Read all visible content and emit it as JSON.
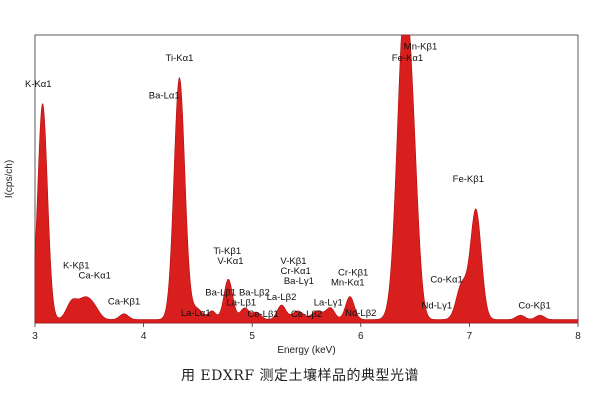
{
  "caption": "用 EDXRF 测定土壤样品的典型光谱",
  "chart_data": {
    "type": "area",
    "title": "",
    "xlabel": "Energy (keV)",
    "ylabel": "I(cps/ch)",
    "xlim": [
      3,
      8
    ],
    "ylim": [
      0,
      100
    ],
    "grid": false,
    "color": "#d91e1e",
    "xticks": [
      3,
      4,
      5,
      6,
      7,
      8
    ],
    "baseline": 1.2,
    "peaks": [
      {
        "center": 3.07,
        "height": 75,
        "width": 0.045
      },
      {
        "center": 3.34,
        "height": 6,
        "width": 0.05
      },
      {
        "center": 3.46,
        "height": 7,
        "width": 0.06
      },
      {
        "center": 3.55,
        "height": 3,
        "width": 0.05
      },
      {
        "center": 3.82,
        "height": 2,
        "width": 0.04
      },
      {
        "center": 4.33,
        "height": 84,
        "width": 0.05
      },
      {
        "center": 4.47,
        "height": 2.5,
        "width": 0.04
      },
      {
        "center": 4.52,
        "height": 2,
        "width": 0.04
      },
      {
        "center": 4.63,
        "height": 3,
        "width": 0.035
      },
      {
        "center": 4.78,
        "height": 14,
        "width": 0.04
      },
      {
        "center": 4.93,
        "height": 4,
        "width": 0.04
      },
      {
        "center": 5.04,
        "height": 2.5,
        "width": 0.04
      },
      {
        "center": 5.27,
        "height": 5,
        "width": 0.04
      },
      {
        "center": 5.42,
        "height": 3,
        "width": 0.05
      },
      {
        "center": 5.6,
        "height": 3,
        "width": 0.05
      },
      {
        "center": 5.72,
        "height": 4,
        "width": 0.04
      },
      {
        "center": 5.9,
        "height": 8,
        "width": 0.04
      },
      {
        "center": 6.4,
        "height": 105,
        "width": 0.065
      },
      {
        "center": 6.49,
        "height": 30,
        "width": 0.05
      },
      {
        "center": 6.93,
        "height": 12,
        "width": 0.05
      },
      {
        "center": 7.06,
        "height": 38,
        "width": 0.05
      },
      {
        "center": 7.47,
        "height": 1.5,
        "width": 0.04
      },
      {
        "center": 7.65,
        "height": 1.5,
        "width": 0.04
      }
    ],
    "annotations": [
      {
        "text": "K-Kα1",
        "x": 3.03,
        "y": 82
      },
      {
        "text": "Ti-Kα1",
        "x": 4.33,
        "y": 91
      },
      {
        "text": "Ba-Lα1",
        "x": 4.19,
        "y": 78
      },
      {
        "text": "Mn-Kβ1",
        "x": 6.55,
        "y": 95
      },
      {
        "text": "Fe-Kα1",
        "x": 6.43,
        "y": 91
      },
      {
        "text": "K-Kβ1",
        "x": 3.38,
        "y": 19
      },
      {
        "text": "Ca-Kα1",
        "x": 3.55,
        "y": 15.5
      },
      {
        "text": "Ca-Kβ1",
        "x": 3.82,
        "y": 6.5
      },
      {
        "text": "Ti-Kβ1",
        "x": 4.77,
        "y": 24
      },
      {
        "text": "V-Kα1",
        "x": 4.8,
        "y": 20.5
      },
      {
        "text": "Ba-Lβ1",
        "x": 4.71,
        "y": 9.5
      },
      {
        "text": "La-Lα1",
        "x": 4.48,
        "y": 2.5
      },
      {
        "text": "Ba-Lβ2",
        "x": 5.02,
        "y": 9.5
      },
      {
        "text": "La-Lβ1",
        "x": 4.9,
        "y": 6
      },
      {
        "text": "La-Lβ2",
        "x": 5.27,
        "y": 8
      },
      {
        "text": "Ce-Lβ1",
        "x": 5.1,
        "y": 2
      },
      {
        "text": "V-Kβ1",
        "x": 5.38,
        "y": 20.5
      },
      {
        "text": "Cr-Kα1",
        "x": 5.4,
        "y": 17
      },
      {
        "text": "Ba-Lγ1",
        "x": 5.43,
        "y": 13.5
      },
      {
        "text": "Mn-Kα1",
        "x": 5.88,
        "y": 13
      },
      {
        "text": "Cr-Kβ1",
        "x": 5.93,
        "y": 16.5
      },
      {
        "text": "Ce-Lβ2",
        "x": 5.5,
        "y": 2
      },
      {
        "text": "La-Lγ1",
        "x": 5.7,
        "y": 6
      },
      {
        "text": "Nd-Lβ2",
        "x": 6.0,
        "y": 2.5
      },
      {
        "text": "Nd-Lγ1",
        "x": 6.7,
        "y": 5
      },
      {
        "text": "Co-Kα1",
        "x": 6.79,
        "y": 14
      },
      {
        "text": "Fe-Kβ1",
        "x": 6.99,
        "y": 49
      },
      {
        "text": "Co-Kβ1",
        "x": 7.6,
        "y": 5
      }
    ]
  }
}
